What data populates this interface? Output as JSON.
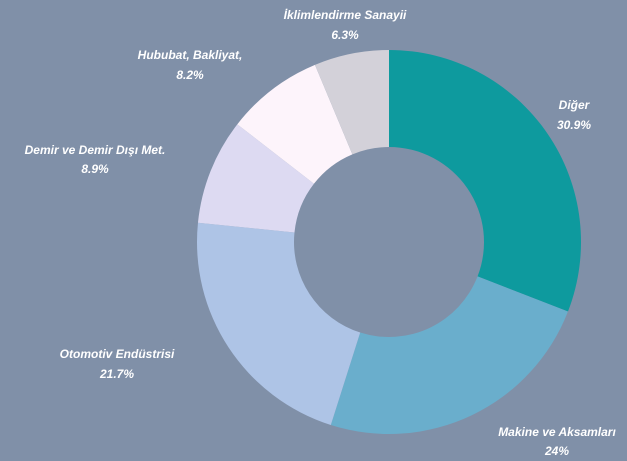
{
  "chart_data": {
    "type": "donut",
    "categories": [
      "Diğer",
      "Makine ve Aksamları",
      "Otomotiv Endüstrisi",
      "Demir ve Demir Dışı Met.",
      "Hububat, Bakliyat,",
      "İklimlendirme Sanayii"
    ],
    "values": [
      30.9,
      24,
      21.7,
      8.9,
      8.2,
      6.3
    ],
    "value_labels": [
      "30.9%",
      "24%",
      "21.7%",
      "8.9%",
      "8.2%",
      "6.3%"
    ],
    "colors": [
      "#0e9a9e",
      "#6aaecc",
      "#aec4e6",
      "#dddaf2",
      "#fdf4fb",
      "#d3d1d9"
    ]
  }
}
